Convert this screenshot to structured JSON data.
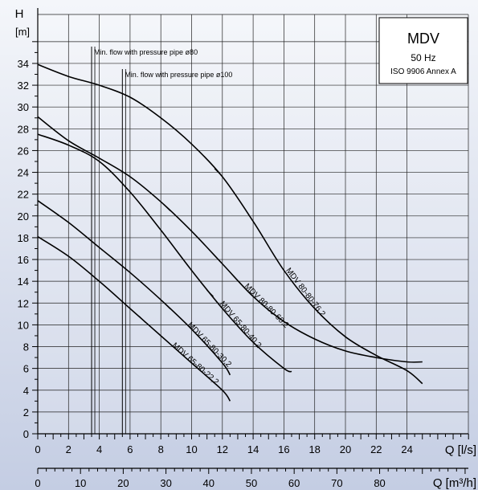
{
  "chart_data": {
    "type": "line",
    "title": "MDV",
    "subtitle": "50 Hz",
    "standard": "ISO 9906 Annex A",
    "ylabel": "H",
    "yunit": "[m]",
    "xlabel": "Q [l/s]",
    "x2label": "Q [m³/h]",
    "xlim": [
      0,
      26
    ],
    "ylim": [
      0,
      38
    ],
    "x_ticks": [
      0,
      2,
      4,
      6,
      8,
      10,
      12,
      14,
      16,
      18,
      20,
      22,
      24
    ],
    "y_ticks": [
      0,
      2,
      4,
      6,
      8,
      10,
      12,
      14,
      16,
      18,
      20,
      22,
      24,
      26,
      28,
      30,
      32,
      34
    ],
    "x2_ticks": [
      0,
      10,
      20,
      30,
      40,
      50,
      60,
      70,
      80
    ],
    "grid": true,
    "annotations": [
      {
        "text": "Min. flow with pressure pipe ø80",
        "x": 3.5
      },
      {
        "text": "Min. flow with pressure pipe ø100",
        "x": 5.5
      }
    ],
    "series": [
      {
        "name": "MDV 80-80-76,2",
        "x": [
          0,
          2,
          4,
          6,
          8,
          10,
          12,
          14,
          16,
          18,
          20,
          22,
          24,
          25
        ],
        "y": [
          33.9,
          32.8,
          32.0,
          30.9,
          29.0,
          26.6,
          23.6,
          19.5,
          15.0,
          11.5,
          8.9,
          7.2,
          5.8,
          4.6
        ],
        "label_at": 15.8
      },
      {
        "name": "MDV 80-80-60,2",
        "x": [
          0,
          2,
          4,
          6,
          8,
          10,
          12,
          14,
          16,
          18,
          20,
          22,
          24,
          25
        ],
        "y": [
          29.1,
          26.9,
          25.3,
          23.6,
          21.3,
          18.6,
          15.6,
          12.6,
          10.3,
          8.7,
          7.6,
          7.0,
          6.6,
          6.6
        ],
        "label_at": 13.1
      },
      {
        "name": "MDV 65-80-40,2",
        "x": [
          0,
          2,
          4,
          6,
          8,
          10,
          12,
          14,
          16,
          16.5
        ],
        "y": [
          27.5,
          26.5,
          25.0,
          22.2,
          18.7,
          15.0,
          11.5,
          8.4,
          6.0,
          5.7
        ],
        "label_at": 11.5
      },
      {
        "name": "MDV 65-80-30,2",
        "x": [
          0,
          2,
          4,
          6,
          8,
          10,
          12,
          12.5
        ],
        "y": [
          21.4,
          19.4,
          17.1,
          14.8,
          12.3,
          9.6,
          6.5,
          5.4
        ],
        "label_at": 9.4
      },
      {
        "name": "MDV 65-80-22,2",
        "x": [
          0,
          2,
          4,
          6,
          8,
          10,
          12,
          12.5
        ],
        "y": [
          18.1,
          16.3,
          14.0,
          11.5,
          9.0,
          6.5,
          4.0,
          3.0
        ],
        "label_at": 8.4
      }
    ]
  }
}
